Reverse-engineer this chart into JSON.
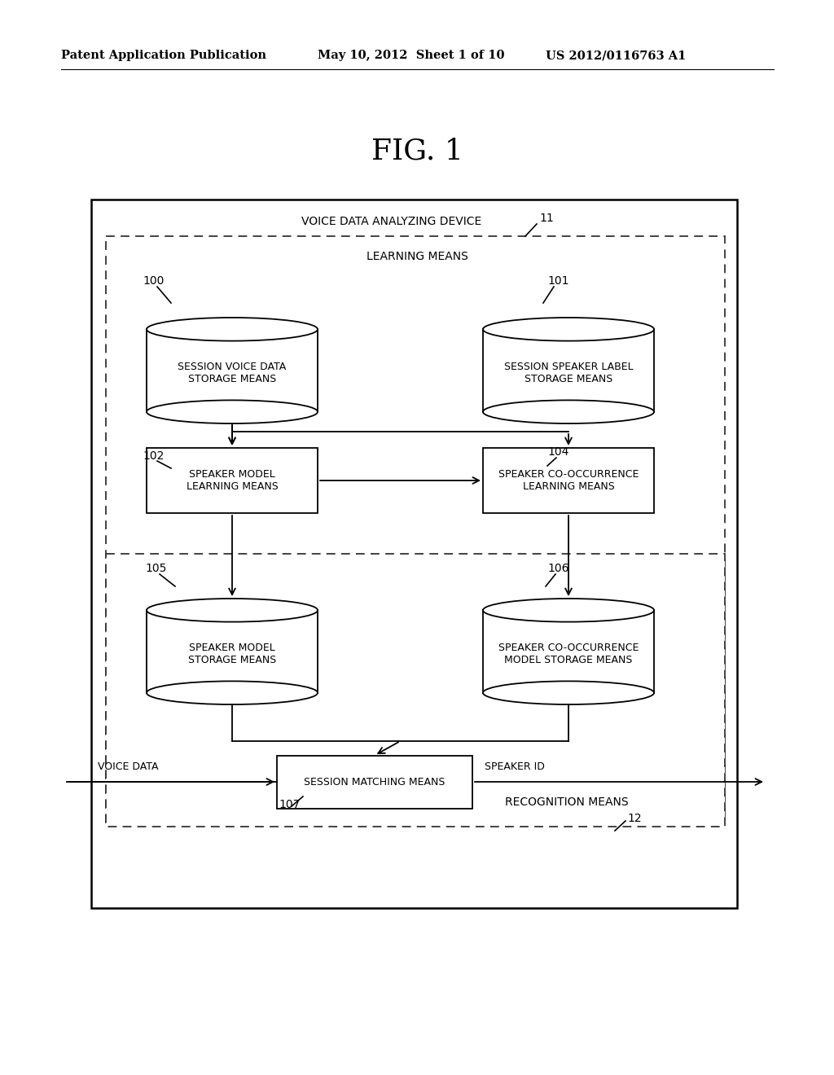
{
  "bg_color": "#ffffff",
  "header_left": "Patent Application Publication",
  "header_mid": "May 10, 2012  Sheet 1 of 10",
  "header_right": "US 2012/0116763 A1",
  "fig_title": "FIG. 1",
  "outer_box_label": "VOICE DATA ANALYZING DEVICE",
  "outer_box_num": "11",
  "learning_box_label": "LEARNING MEANS",
  "recognition_box_label": "RECOGNITION MEANS",
  "recognition_box_num": "12",
  "db100_label": "SESSION VOICE DATA\nSTORAGE MEANS",
  "db100_num": "100",
  "db101_label": "SESSION SPEAKER LABEL\nSTORAGE MEANS",
  "db101_num": "101",
  "box102_label": "SPEAKER MODEL\nLEARNING MEANS",
  "box102_num": "102",
  "box104_label": "SPEAKER CO-OCCURRENCE\nLEARNING MEANS",
  "box104_num": "104",
  "db105_label": "SPEAKER MODEL\nSTORAGE MEANS",
  "db105_num": "105",
  "db106_label": "SPEAKER CO-OCCURRENCE\nMODEL STORAGE MEANS",
  "db106_num": "106",
  "box107_label": "SESSION MATCHING MEANS",
  "box107_num": "107",
  "voice_data_label": "VOICE DATA",
  "speaker_id_label": "SPEAKER ID"
}
